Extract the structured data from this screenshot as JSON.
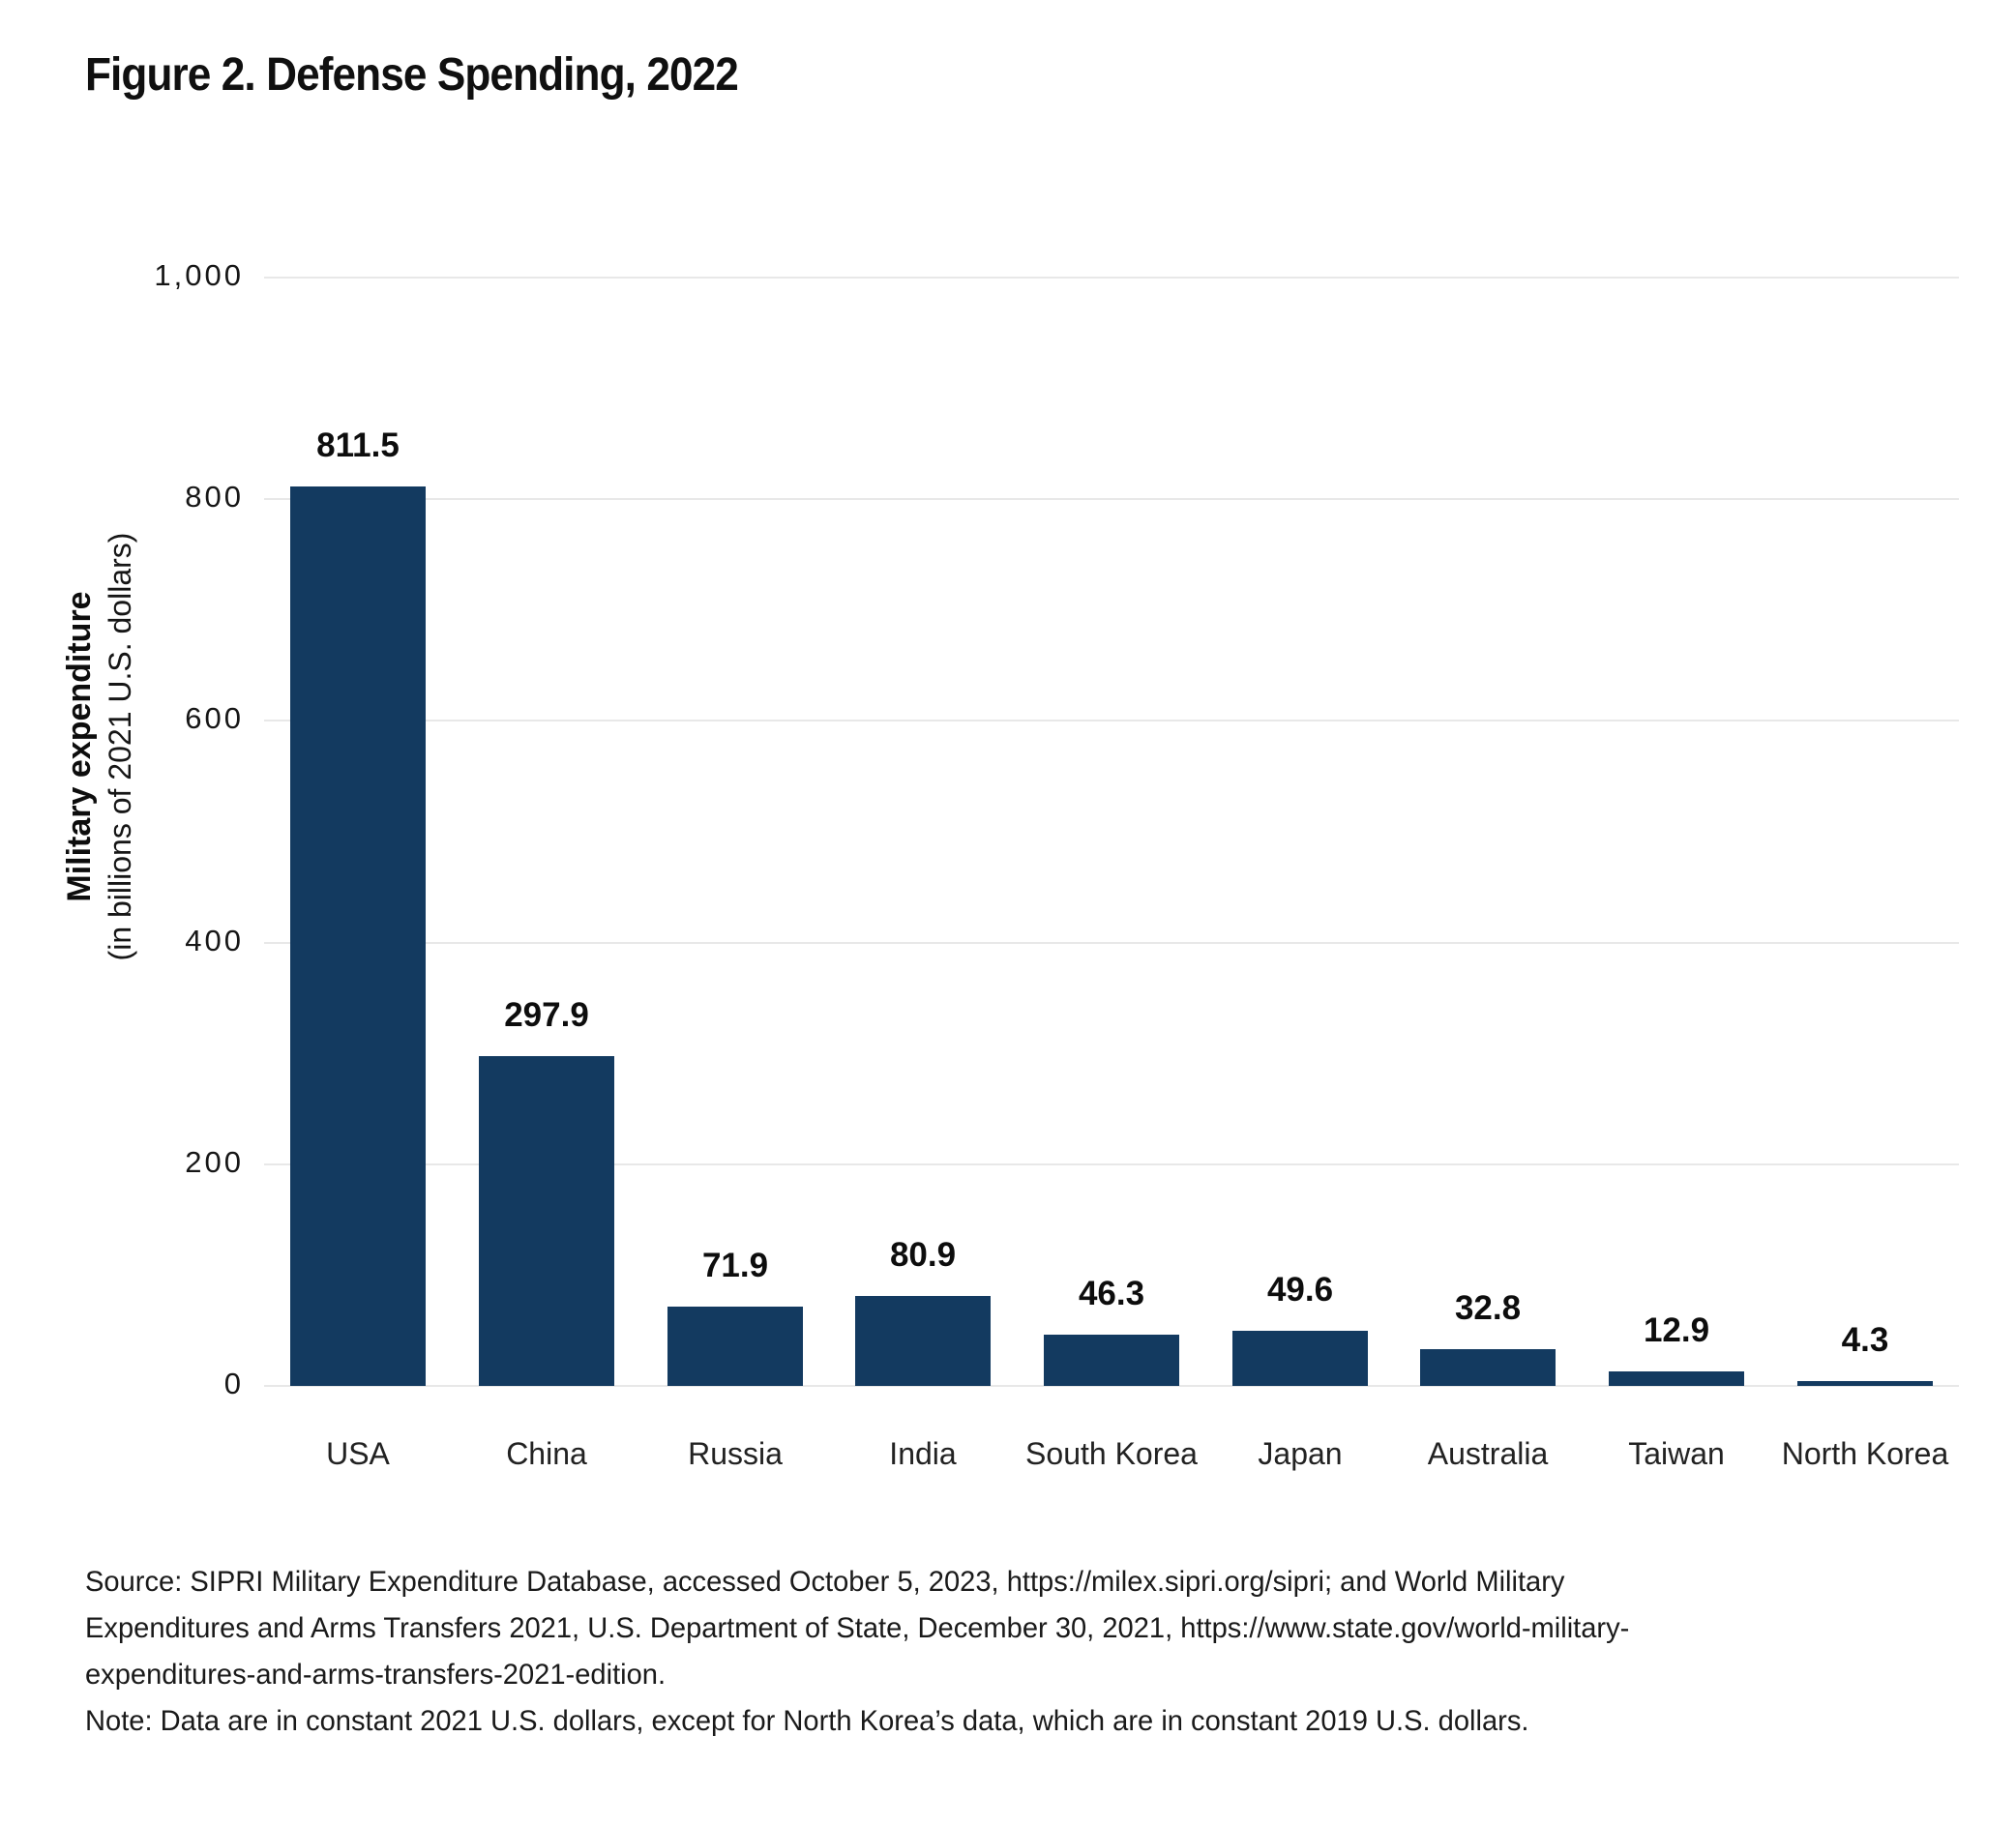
{
  "figure": {
    "title": "Figure 2. Defense Spending, 2022"
  },
  "y_axis": {
    "title_bold": "Military expenditure",
    "title_sub": "(in billions of 2021 U.S. dollars)",
    "ticks": [
      {
        "label": "1,000",
        "value": 1000
      },
      {
        "label": "800",
        "value": 800
      },
      {
        "label": "600",
        "value": 600
      },
      {
        "label": "400",
        "value": 400
      },
      {
        "label": "200",
        "value": 200
      },
      {
        "label": "0",
        "value": 0
      }
    ]
  },
  "chart_data": {
    "type": "bar",
    "title": "Figure 2. Defense Spending, 2022",
    "categories": [
      "USA",
      "China",
      "Russia",
      "India",
      "South Korea",
      "Japan",
      "Australia",
      "Taiwan",
      "North Korea"
    ],
    "values": [
      811.5,
      297.9,
      71.9,
      80.9,
      46.3,
      49.6,
      32.8,
      12.9,
      4.3
    ],
    "xlabel": "",
    "ylabel": "Military expenditure (in billions of 2021 U.S. dollars)",
    "ylim": [
      0,
      1000
    ],
    "grid": "horizontal gridlines at 0,200,400,600,800,1000",
    "legend": "none",
    "bar_color": "#133a60",
    "value_labels_shown": true
  },
  "colors": {
    "bar": "#133a60",
    "gridline": "#e8e8e8",
    "text": "#101010"
  },
  "source_note": {
    "source_line1": "Source: SIPRI Military Expenditure Database, accessed October 5, 2023, https://milex.sipri.org/sipri; and World Military",
    "source_line2": "Expenditures and Arms Transfers 2021, U.S. Department of State, December 30, 2021, https://www.state.gov/world-military-",
    "source_line3": "expenditures-and-arms-transfers-2021-edition.",
    "note_line": "Note: Data are in constant 2021 U.S. dollars, except for North Korea’s data, which are in constant 2019 U.S. dollars."
  }
}
